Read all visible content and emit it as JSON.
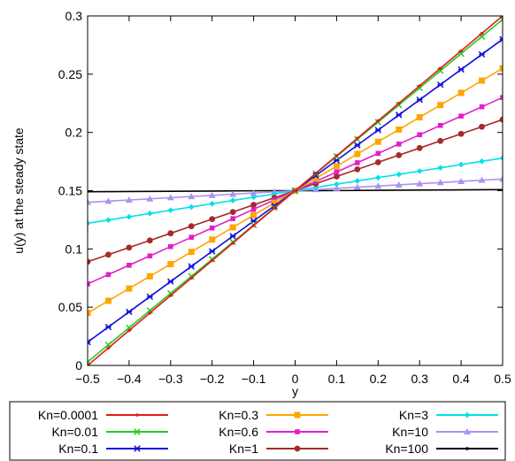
{
  "chart_data": {
    "type": "line",
    "title": "",
    "xlabel": "y",
    "ylabel": "u(y) at the steady state",
    "xlim": [
      -0.5,
      0.5
    ],
    "ylim": [
      0,
      0.3
    ],
    "xticks": [
      -0.5,
      -0.4,
      -0.3,
      -0.2,
      -0.1,
      0,
      0.1,
      0.2,
      0.3,
      0.4,
      0.5
    ],
    "xtick_labels": [
      "−0.5",
      "−0.4",
      "−0.3",
      "−0.2",
      "−0.1",
      "0",
      "0.1",
      "0.2",
      "0.3",
      "0.4",
      "0.5"
    ],
    "yticks": [
      0,
      0.05,
      0.1,
      0.15,
      0.2,
      0.25,
      0.3
    ],
    "ytick_labels": [
      "0",
      "0.05",
      "0.1",
      "0.15",
      "0.2",
      "0.25",
      "0.3"
    ],
    "grid": false,
    "legend_position": "bottom, outside plot, 3 columns",
    "x": [
      -0.5,
      -0.45,
      -0.4,
      -0.35,
      -0.3,
      -0.25,
      -0.2,
      -0.15,
      -0.1,
      -0.05,
      0,
      0.05,
      0.1,
      0.15,
      0.2,
      0.25,
      0.3,
      0.35,
      0.4,
      0.45,
      0.5
    ],
    "series": [
      {
        "name": "Kn=0.0001",
        "color": "#e41a1c",
        "marker": "dot",
        "values": [
          0.0,
          0.015,
          0.03,
          0.045,
          0.06,
          0.075,
          0.09,
          0.105,
          0.12,
          0.135,
          0.15,
          0.165,
          0.18,
          0.195,
          0.21,
          0.225,
          0.24,
          0.255,
          0.27,
          0.285,
          0.3
        ]
      },
      {
        "name": "Kn=0.01",
        "color": "#22cc22",
        "marker": "x",
        "values": [
          0.003,
          0.0177,
          0.0324,
          0.0471,
          0.0618,
          0.0765,
          0.0912,
          0.1059,
          0.1206,
          0.1353,
          0.15,
          0.1647,
          0.1794,
          0.1941,
          0.2088,
          0.2235,
          0.2382,
          0.2529,
          0.2676,
          0.2823,
          0.297
        ]
      },
      {
        "name": "Kn=0.1",
        "color": "#1010dd",
        "marker": "star",
        "values": [
          0.02,
          0.033,
          0.046,
          0.059,
          0.072,
          0.085,
          0.098,
          0.111,
          0.124,
          0.137,
          0.15,
          0.163,
          0.176,
          0.189,
          0.202,
          0.215,
          0.228,
          0.241,
          0.254,
          0.267,
          0.28
        ]
      },
      {
        "name": "Kn=0.3",
        "color": "#ffa500",
        "marker": "square",
        "values": [
          0.045,
          0.0555,
          0.066,
          0.0765,
          0.087,
          0.0975,
          0.108,
          0.1185,
          0.129,
          0.1395,
          0.15,
          0.1605,
          0.171,
          0.1815,
          0.192,
          0.2025,
          0.213,
          0.2235,
          0.234,
          0.2445,
          0.255
        ]
      },
      {
        "name": "Kn=0.6",
        "color": "#e020c8",
        "marker": "smallsquare",
        "values": [
          0.07,
          0.078,
          0.086,
          0.094,
          0.102,
          0.11,
          0.118,
          0.126,
          0.134,
          0.142,
          0.15,
          0.158,
          0.166,
          0.174,
          0.182,
          0.19,
          0.198,
          0.206,
          0.214,
          0.222,
          0.23
        ]
      },
      {
        "name": "Kn=1",
        "color": "#a52a2a",
        "marker": "circle",
        "values": [
          0.089,
          0.0951,
          0.1012,
          0.1073,
          0.1134,
          0.1195,
          0.1256,
          0.1317,
          0.1378,
          0.1439,
          0.15,
          0.1561,
          0.1622,
          0.1683,
          0.1744,
          0.1805,
          0.1866,
          0.1927,
          0.1988,
          0.2049,
          0.211
        ]
      },
      {
        "name": "Kn=3",
        "color": "#00e0e8",
        "marker": "diamond",
        "values": [
          0.122,
          0.1248,
          0.1276,
          0.1304,
          0.1332,
          0.136,
          0.1388,
          0.1416,
          0.1444,
          0.1472,
          0.15,
          0.1528,
          0.1556,
          0.1584,
          0.1612,
          0.164,
          0.1668,
          0.1696,
          0.1724,
          0.1752,
          0.178
        ]
      },
      {
        "name": "Kn=10",
        "color": "#b090f0",
        "marker": "triangle",
        "values": [
          0.14,
          0.141,
          0.142,
          0.143,
          0.144,
          0.145,
          0.146,
          0.147,
          0.148,
          0.149,
          0.15,
          0.151,
          0.152,
          0.153,
          0.154,
          0.155,
          0.156,
          0.157,
          0.158,
          0.159,
          0.16
        ]
      },
      {
        "name": "Kn=100",
        "color": "#000000",
        "marker": "dot",
        "values": [
          0.1491,
          0.1492,
          0.1493,
          0.1494,
          0.1495,
          0.1496,
          0.1497,
          0.1498,
          0.1499,
          0.15,
          0.15,
          0.15,
          0.1501,
          0.1502,
          0.1503,
          0.1504,
          0.1505,
          0.1506,
          0.1507,
          0.1508,
          0.1509
        ]
      }
    ]
  }
}
